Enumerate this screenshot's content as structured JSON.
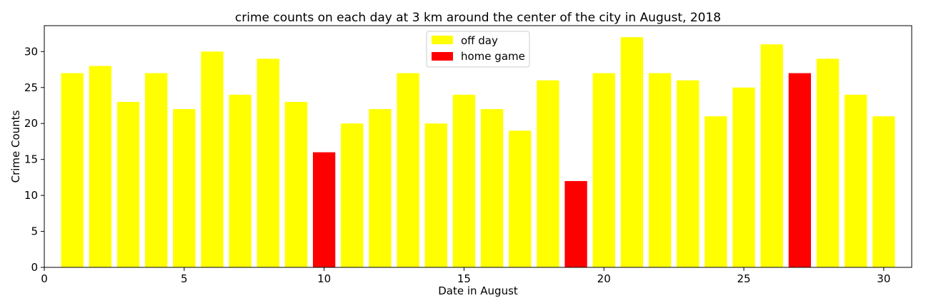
{
  "chart_data": {
    "type": "bar",
    "title": "crime counts on each day at 3 km around the center of the city in August, 2018",
    "xlabel": "Date in August",
    "ylabel": "Crime Counts",
    "xlim": [
      0,
      31
    ],
    "ylim": [
      0,
      33.6
    ],
    "xticks": [
      0,
      5,
      10,
      15,
      20,
      25,
      30
    ],
    "yticks": [
      0,
      5,
      10,
      15,
      20,
      25,
      30
    ],
    "grid": false,
    "legend_position": "top-center",
    "series": [
      {
        "name": "off day",
        "color": "#ffff00",
        "points": [
          {
            "x": 1,
            "y": 27
          },
          {
            "x": 2,
            "y": 28
          },
          {
            "x": 3,
            "y": 23
          },
          {
            "x": 4,
            "y": 27
          },
          {
            "x": 5,
            "y": 22
          },
          {
            "x": 6,
            "y": 30
          },
          {
            "x": 7,
            "y": 24
          },
          {
            "x": 8,
            "y": 29
          },
          {
            "x": 9,
            "y": 23
          },
          {
            "x": 11,
            "y": 20
          },
          {
            "x": 12,
            "y": 22
          },
          {
            "x": 13,
            "y": 27
          },
          {
            "x": 14,
            "y": 20
          },
          {
            "x": 15,
            "y": 24
          },
          {
            "x": 16,
            "y": 22
          },
          {
            "x": 17,
            "y": 19
          },
          {
            "x": 18,
            "y": 26
          },
          {
            "x": 20,
            "y": 27
          },
          {
            "x": 21,
            "y": 32
          },
          {
            "x": 22,
            "y": 27
          },
          {
            "x": 23,
            "y": 26
          },
          {
            "x": 24,
            "y": 21
          },
          {
            "x": 25,
            "y": 25
          },
          {
            "x": 26,
            "y": 31
          },
          {
            "x": 28,
            "y": 29
          },
          {
            "x": 29,
            "y": 24
          },
          {
            "x": 30,
            "y": 21
          }
        ]
      },
      {
        "name": "home game",
        "color": "#ff0000",
        "points": [
          {
            "x": 10,
            "y": 16
          },
          {
            "x": 19,
            "y": 12
          },
          {
            "x": 27,
            "y": 27
          }
        ]
      }
    ]
  }
}
